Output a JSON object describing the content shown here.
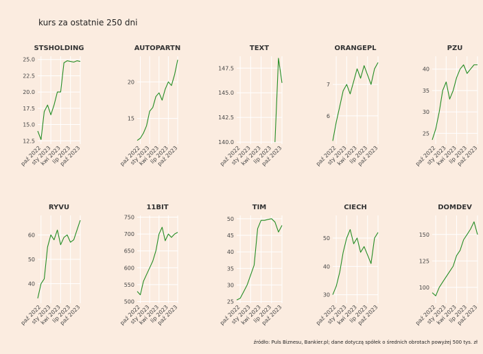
{
  "title": "kurs za ostatnie 250 dni",
  "caption": "źródło: Puls Biznesu, Bankier.pl; dane dotyczą spółek o średnich obrotach powyżej 500 tys. zł",
  "chart_data": [
    {
      "type": "line",
      "title": "STSHOLDING",
      "color": "#228b22",
      "grid": true,
      "x": [
        "wrz 2022",
        "paź 2022",
        "lis 2022",
        "gru 2022",
        "sty 2023",
        "lut 2023",
        "mar 2023",
        "kwi 2023",
        "maj 2023",
        "cze 2023",
        "lip 2023",
        "sie 2023",
        "wrz 2023",
        "paź 2023"
      ],
      "xticks": [
        "paź 2022",
        "sty 2023",
        "kwi 2023",
        "lip 2023",
        "paź 2023"
      ],
      "values": [
        14,
        12.7,
        17,
        18,
        16.5,
        18,
        20,
        20,
        24.5,
        24.8,
        24.7,
        24.6,
        24.8,
        24.7
      ],
      "ylim": [
        12,
        25.5
      ],
      "yticks": [
        12.5,
        {
          "value": 15,
          "label": "15.0"
        },
        17.5,
        {
          "value": 20,
          "label": "20.0"
        },
        22.5,
        {
          "value": 25,
          "label": "25.0"
        }
      ]
    },
    {
      "type": "line",
      "title": "AUTOPARTN",
      "color": "#228b22",
      "grid": true,
      "x": [
        "wrz 2022",
        "paź 2022",
        "lis 2022",
        "gru 2022",
        "sty 2023",
        "lut 2023",
        "mar 2023",
        "kwi 2023",
        "maj 2023",
        "cze 2023",
        "lip 2023",
        "sie 2023",
        "wrz 2023",
        "paź 2023"
      ],
      "xticks": [
        "paź 2022",
        "sty 2023",
        "kwi 2023",
        "lip 2023",
        "paź 2023"
      ],
      "values": [
        12,
        12.3,
        13,
        14,
        16,
        16.5,
        18,
        18.5,
        17.5,
        19,
        20,
        19.5,
        21,
        23
      ],
      "ylim": [
        11.5,
        23.5
      ],
      "yticks": [
        15,
        20
      ]
    },
    {
      "type": "line",
      "title": "TEXT",
      "color": "#228b22",
      "grid": true,
      "x": [
        "wrz 2022",
        "paź 2022",
        "lis 2022",
        "gru 2022",
        "sty 2023",
        "lut 2023",
        "mar 2023",
        "kwi 2023",
        "maj 2023",
        "cze 2023",
        "lip 2023",
        "sie 2023",
        "wrz 2023",
        "paź 2023"
      ],
      "xticks": [
        "paź 2022",
        "sty 2023",
        "kwi 2023",
        "lip 2023",
        "paź 2023"
      ],
      "values": [
        null,
        null,
        null,
        null,
        null,
        null,
        null,
        null,
        null,
        null,
        null,
        140,
        148.5,
        146
      ],
      "ylim": [
        139.8,
        148.7
      ],
      "yticks": [
        {
          "value": 140,
          "label": "140.0"
        },
        142.5,
        {
          "value": 145,
          "label": "145.0"
        },
        147.5
      ]
    },
    {
      "type": "line",
      "title": "ORANGEPL",
      "color": "#228b22",
      "grid": true,
      "x": [
        "wrz 2022",
        "paź 2022",
        "lis 2022",
        "gru 2022",
        "sty 2023",
        "lut 2023",
        "mar 2023",
        "kwi 2023",
        "maj 2023",
        "cze 2023",
        "lip 2023",
        "sie 2023",
        "wrz 2023",
        "paź 2023"
      ],
      "xticks": [
        "paź 2022",
        "sty 2023",
        "kwi 2023",
        "lip 2023",
        "paź 2023"
      ],
      "values": [
        5.2,
        5.8,
        6.3,
        6.8,
        7.0,
        6.7,
        7.1,
        7.5,
        7.2,
        7.6,
        7.3,
        7.0,
        7.5,
        7.7
      ],
      "ylim": [
        5.1,
        7.9
      ],
      "yticks": [
        6,
        7
      ]
    },
    {
      "type": "line",
      "title": "PZU",
      "color": "#228b22",
      "grid": true,
      "x": [
        "wrz 2022",
        "paź 2022",
        "lis 2022",
        "gru 2022",
        "sty 2023",
        "lut 2023",
        "mar 2023",
        "kwi 2023",
        "maj 2023",
        "cze 2023",
        "lip 2023",
        "sie 2023",
        "wrz 2023",
        "paź 2023"
      ],
      "xticks": [
        "paź 2022",
        "sty 2023",
        "kwi 2023",
        "lip 2023",
        "paź 2023"
      ],
      "values": [
        23.5,
        26,
        30,
        35,
        37,
        33,
        35,
        38,
        40,
        41,
        39,
        40,
        41,
        41
      ],
      "ylim": [
        22.5,
        43
      ],
      "yticks": [
        25,
        30,
        35,
        40
      ]
    },
    {
      "type": "line",
      "title": "RYVU",
      "color": "#228b22",
      "grid": true,
      "x": [
        "wrz 2022",
        "paź 2022",
        "lis 2022",
        "gru 2022",
        "sty 2023",
        "lut 2023",
        "mar 2023",
        "kwi 2023",
        "maj 2023",
        "cze 2023",
        "lip 2023",
        "sie 2023",
        "wrz 2023",
        "paź 2023"
      ],
      "xticks": [
        "paź 2022",
        "sty 2023",
        "kwi 2023",
        "lip 2023",
        "paź 2023"
      ],
      "values": [
        34,
        40,
        42,
        55,
        60,
        58,
        62,
        56,
        59,
        60,
        57,
        58,
        62,
        66
      ],
      "ylim": [
        32,
        68
      ],
      "yticks": [
        40,
        50,
        60
      ]
    },
    {
      "type": "line",
      "title": "11BIT",
      "color": "#228b22",
      "grid": true,
      "x": [
        "wrz 2022",
        "paź 2022",
        "lis 2022",
        "gru 2022",
        "sty 2023",
        "lut 2023",
        "mar 2023",
        "kwi 2023",
        "maj 2023",
        "cze 2023",
        "lip 2023",
        "sie 2023",
        "wrz 2023",
        "paź 2023"
      ],
      "xticks": [
        "paź 2022",
        "sty 2023",
        "kwi 2023",
        "lip 2023",
        "paź 2023"
      ],
      "values": [
        530,
        520,
        560,
        580,
        600,
        620,
        650,
        700,
        720,
        680,
        700,
        690,
        700,
        705
      ],
      "ylim": [
        495,
        755
      ],
      "yticks": [
        500,
        550,
        600,
        650,
        700,
        750
      ]
    },
    {
      "type": "line",
      "title": "TIM",
      "color": "#228b22",
      "grid": true,
      "x": [
        "wrz 2022",
        "paź 2022",
        "lis 2022",
        "gru 2022",
        "sty 2023",
        "lut 2023",
        "mar 2023",
        "kwi 2023",
        "maj 2023",
        "cze 2023",
        "lip 2023",
        "sie 2023",
        "wrz 2023",
        "paź 2023"
      ],
      "xticks": [
        "paź 2022",
        "sty 2023",
        "kwi 2023",
        "lip 2023",
        "paź 2023"
      ],
      "values": [
        25.5,
        26,
        28,
        30,
        33,
        36,
        47,
        49.5,
        49.5,
        49.8,
        50,
        49,
        46,
        48
      ],
      "ylim": [
        24.5,
        51
      ],
      "yticks": [
        25,
        30,
        35,
        40,
        45,
        50
      ]
    },
    {
      "type": "line",
      "title": "CIECH",
      "color": "#228b22",
      "grid": true,
      "x": [
        "wrz 2022",
        "paź 2022",
        "lis 2022",
        "gru 2022",
        "sty 2023",
        "lut 2023",
        "mar 2023",
        "kwi 2023",
        "maj 2023",
        "cze 2023",
        "lip 2023",
        "sie 2023",
        "wrz 2023",
        "paź 2023"
      ],
      "xticks": [
        "paź 2022",
        "sty 2023",
        "kwi 2023",
        "lip 2023",
        "paź 2023"
      ],
      "values": [
        30,
        33,
        38,
        45,
        50,
        53,
        48,
        50,
        45,
        47,
        44,
        41,
        50,
        52
      ],
      "ylim": [
        27,
        58
      ],
      "yticks": [
        30,
        40,
        50
      ]
    },
    {
      "type": "line",
      "title": "DOMDEV",
      "color": "#228b22",
      "grid": true,
      "x": [
        "wrz 2022",
        "paź 2022",
        "lis 2022",
        "gru 2022",
        "sty 2023",
        "lut 2023",
        "mar 2023",
        "kwi 2023",
        "maj 2023",
        "cze 2023",
        "lip 2023",
        "sie 2023",
        "wrz 2023",
        "paź 2023"
      ],
      "xticks": [
        "paź 2022",
        "sty 2023",
        "kwi 2023",
        "lip 2023",
        "paź 2023"
      ],
      "values": [
        95,
        92,
        100,
        105,
        110,
        115,
        120,
        130,
        135,
        145,
        150,
        155,
        162,
        150
      ],
      "ylim": [
        85,
        168
      ],
      "yticks": [
        100,
        125,
        150
      ]
    }
  ]
}
